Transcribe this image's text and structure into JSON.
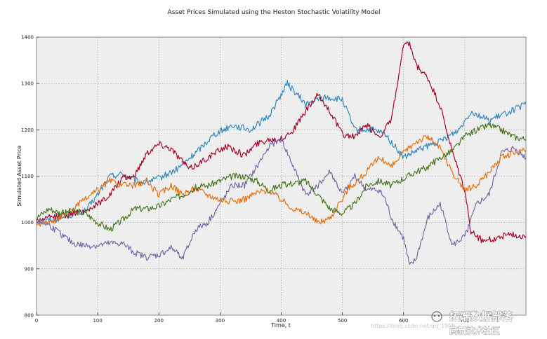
{
  "chart_data": {
    "type": "line",
    "title": "Asset Prices Simulated using the Heston Stochastic Volatility Model",
    "xlabel": "Time, t",
    "ylabel": "Simulated Asset Price",
    "xlim": [
      0,
      800
    ],
    "ylim": [
      800,
      1400
    ],
    "xticks": [
      0,
      100,
      200,
      300,
      400,
      500,
      600,
      700
    ],
    "yticks": [
      800,
      900,
      1000,
      1100,
      1200,
      1300,
      1400
    ],
    "grid": true,
    "series": [
      {
        "name": "blue",
        "color": "#348ABD",
        "points": [
          [
            0,
            1000
          ],
          [
            40,
            1010
          ],
          [
            80,
            1025
          ],
          [
            100,
            1060
          ],
          [
            120,
            1100
          ],
          [
            140,
            1105
          ],
          [
            170,
            1085
          ],
          [
            200,
            1095
          ],
          [
            230,
            1115
          ],
          [
            260,
            1150
          ],
          [
            290,
            1190
          ],
          [
            320,
            1210
          ],
          [
            350,
            1200
          ],
          [
            380,
            1230
          ],
          [
            410,
            1300
          ],
          [
            440,
            1255
          ],
          [
            470,
            1270
          ],
          [
            500,
            1265
          ],
          [
            520,
            1200
          ],
          [
            550,
            1200
          ],
          [
            570,
            1190
          ],
          [
            600,
            1140
          ],
          [
            630,
            1160
          ],
          [
            660,
            1175
          ],
          [
            690,
            1200
          ],
          [
            710,
            1240
          ],
          [
            740,
            1220
          ],
          [
            800,
            1255
          ]
        ]
      },
      {
        "name": "red",
        "color": "#A60628",
        "points": [
          [
            0,
            1005
          ],
          [
            40,
            1015
          ],
          [
            80,
            1025
          ],
          [
            100,
            1040
          ],
          [
            120,
            1060
          ],
          [
            140,
            1095
          ],
          [
            160,
            1100
          ],
          [
            180,
            1150
          ],
          [
            200,
            1170
          ],
          [
            220,
            1160
          ],
          [
            250,
            1115
          ],
          [
            280,
            1140
          ],
          [
            310,
            1165
          ],
          [
            340,
            1145
          ],
          [
            360,
            1170
          ],
          [
            380,
            1180
          ],
          [
            400,
            1180
          ],
          [
            420,
            1200
          ],
          [
            440,
            1240
          ],
          [
            460,
            1275
          ],
          [
            480,
            1240
          ],
          [
            500,
            1190
          ],
          [
            520,
            1185
          ],
          [
            540,
            1210
          ],
          [
            560,
            1185
          ],
          [
            580,
            1220
          ],
          [
            600,
            1380
          ],
          [
            610,
            1385
          ],
          [
            620,
            1340
          ],
          [
            640,
            1310
          ],
          [
            660,
            1250
          ],
          [
            680,
            1150
          ],
          [
            700,
            1070
          ],
          [
            710,
            980
          ],
          [
            730,
            960
          ],
          [
            750,
            965
          ],
          [
            770,
            975
          ],
          [
            800,
            970
          ]
        ]
      },
      {
        "name": "purple",
        "color": "#7A68A6",
        "points": [
          [
            0,
            1005
          ],
          [
            20,
            995
          ],
          [
            40,
            975
          ],
          [
            60,
            955
          ],
          [
            80,
            950
          ],
          [
            100,
            950
          ],
          [
            120,
            955
          ],
          [
            140,
            955
          ],
          [
            160,
            935
          ],
          [
            180,
            925
          ],
          [
            200,
            930
          ],
          [
            220,
            945
          ],
          [
            240,
            925
          ],
          [
            260,
            985
          ],
          [
            280,
            1000
          ],
          [
            300,
            1040
          ],
          [
            320,
            1080
          ],
          [
            340,
            1080
          ],
          [
            360,
            1120
          ],
          [
            380,
            1165
          ],
          [
            400,
            1180
          ],
          [
            420,
            1120
          ],
          [
            440,
            1060
          ],
          [
            460,
            1080
          ],
          [
            480,
            1110
          ],
          [
            500,
            1060
          ],
          [
            520,
            1100
          ],
          [
            540,
            1070
          ],
          [
            560,
            1070
          ],
          [
            570,
            1050
          ],
          [
            580,
            1010
          ],
          [
            600,
            965
          ],
          [
            610,
            905
          ],
          [
            620,
            920
          ],
          [
            640,
            1010
          ],
          [
            660,
            1040
          ],
          [
            680,
            950
          ],
          [
            700,
            970
          ],
          [
            720,
            1040
          ],
          [
            740,
            1060
          ],
          [
            760,
            1150
          ],
          [
            780,
            1160
          ],
          [
            800,
            1140
          ]
        ]
      },
      {
        "name": "orange",
        "color": "#E8710C",
        "points": [
          [
            0,
            995
          ],
          [
            20,
            1000
          ],
          [
            40,
            1010
          ],
          [
            60,
            1030
          ],
          [
            80,
            1050
          ],
          [
            100,
            1070
          ],
          [
            120,
            1090
          ],
          [
            140,
            1080
          ],
          [
            160,
            1080
          ],
          [
            180,
            1090
          ],
          [
            200,
            1060
          ],
          [
            220,
            1080
          ],
          [
            240,
            1060
          ],
          [
            260,
            1075
          ],
          [
            280,
            1060
          ],
          [
            300,
            1050
          ],
          [
            320,
            1045
          ],
          [
            340,
            1050
          ],
          [
            360,
            1065
          ],
          [
            380,
            1070
          ],
          [
            400,
            1050
          ],
          [
            420,
            1030
          ],
          [
            440,
            1020
          ],
          [
            460,
            1000
          ],
          [
            480,
            1010
          ],
          [
            500,
            1050
          ],
          [
            510,
            1075
          ],
          [
            520,
            1085
          ],
          [
            540,
            1110
          ],
          [
            560,
            1140
          ],
          [
            580,
            1120
          ],
          [
            600,
            1150
          ],
          [
            620,
            1175
          ],
          [
            640,
            1185
          ],
          [
            660,
            1160
          ],
          [
            680,
            1105
          ],
          [
            700,
            1070
          ],
          [
            720,
            1080
          ],
          [
            740,
            1110
          ],
          [
            760,
            1140
          ],
          [
            780,
            1150
          ],
          [
            800,
            1155
          ]
        ]
      },
      {
        "name": "green",
        "color": "#467821",
        "points": [
          [
            0,
            1010
          ],
          [
            20,
            1030
          ],
          [
            40,
            1020
          ],
          [
            60,
            1025
          ],
          [
            80,
            1020
          ],
          [
            100,
            1000
          ],
          [
            120,
            985
          ],
          [
            140,
            1005
          ],
          [
            160,
            1030
          ],
          [
            180,
            1030
          ],
          [
            200,
            1035
          ],
          [
            220,
            1050
          ],
          [
            240,
            1060
          ],
          [
            260,
            1075
          ],
          [
            280,
            1080
          ],
          [
            300,
            1090
          ],
          [
            320,
            1100
          ],
          [
            340,
            1100
          ],
          [
            360,
            1090
          ],
          [
            380,
            1070
          ],
          [
            400,
            1080
          ],
          [
            420,
            1085
          ],
          [
            440,
            1090
          ],
          [
            460,
            1060
          ],
          [
            480,
            1030
          ],
          [
            500,
            1020
          ],
          [
            520,
            1040
          ],
          [
            540,
            1080
          ],
          [
            560,
            1090
          ],
          [
            580,
            1080
          ],
          [
            600,
            1095
          ],
          [
            620,
            1110
          ],
          [
            640,
            1120
          ],
          [
            660,
            1140
          ],
          [
            680,
            1155
          ],
          [
            700,
            1185
          ],
          [
            720,
            1200
          ],
          [
            740,
            1210
          ],
          [
            760,
            1200
          ],
          [
            780,
            1185
          ],
          [
            800,
            1180
          ]
        ]
      }
    ]
  },
  "watermark": {
    "url_text": "https://blog.csdn.net/qq_1999...",
    "chinese_title": "拓端数据部落",
    "chinese_subtitle": "高新技术社区"
  }
}
